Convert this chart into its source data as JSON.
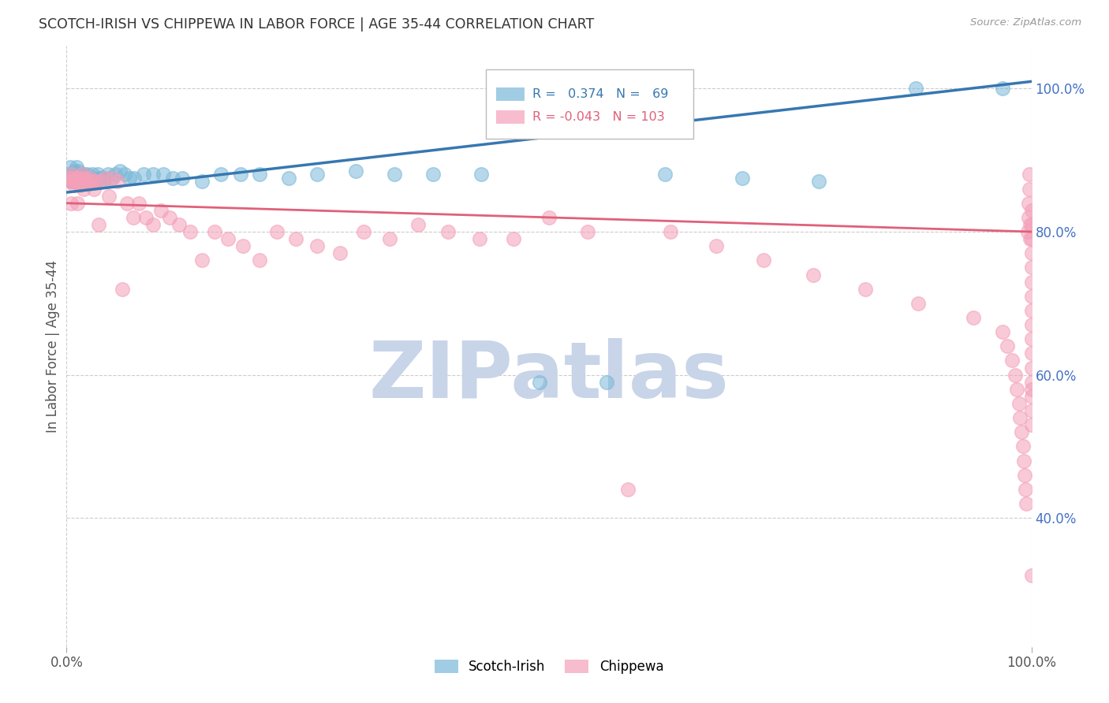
{
  "title": "SCOTCH-IRISH VS CHIPPEWA IN LABOR FORCE | AGE 35-44 CORRELATION CHART",
  "source": "Source: ZipAtlas.com",
  "ylabel": "In Labor Force | Age 35-44",
  "xlim": [
    0.0,
    1.0
  ],
  "ylim": [
    0.22,
    1.06
  ],
  "yticks": [
    0.4,
    0.6,
    0.8,
    1.0
  ],
  "ytick_labels": [
    "40.0%",
    "60.0%",
    "80.0%",
    "100.0%"
  ],
  "scotch_irish_R": 0.374,
  "scotch_irish_N": 69,
  "chippewa_R": -0.043,
  "chippewa_N": 103,
  "scotch_irish_color": "#7ab8d9",
  "chippewa_color": "#f4a0b8",
  "scotch_irish_line_color": "#3777b0",
  "chippewa_line_color": "#e0607a",
  "watermark_color": "#c8d4e8",
  "scotch_irish_x": [
    0.003,
    0.004,
    0.005,
    0.005,
    0.006,
    0.006,
    0.007,
    0.007,
    0.008,
    0.008,
    0.009,
    0.009,
    0.01,
    0.01,
    0.011,
    0.011,
    0.012,
    0.012,
    0.013,
    0.014,
    0.015,
    0.015,
    0.016,
    0.017,
    0.018,
    0.019,
    0.02,
    0.021,
    0.022,
    0.023,
    0.025,
    0.026,
    0.027,
    0.028,
    0.03,
    0.032,
    0.034,
    0.036,
    0.038,
    0.04,
    0.043,
    0.046,
    0.05,
    0.055,
    0.06,
    0.065,
    0.07,
    0.08,
    0.09,
    0.1,
    0.11,
    0.12,
    0.14,
    0.16,
    0.18,
    0.2,
    0.23,
    0.26,
    0.3,
    0.34,
    0.38,
    0.43,
    0.49,
    0.56,
    0.62,
    0.7,
    0.78,
    0.88,
    0.97
  ],
  "scotch_irish_y": [
    0.88,
    0.89,
    0.87,
    0.88,
    0.88,
    0.875,
    0.875,
    0.87,
    0.885,
    0.875,
    0.87,
    0.88,
    0.89,
    0.87,
    0.875,
    0.88,
    0.885,
    0.87,
    0.875,
    0.88,
    0.88,
    0.875,
    0.87,
    0.875,
    0.88,
    0.87,
    0.875,
    0.88,
    0.87,
    0.875,
    0.875,
    0.87,
    0.88,
    0.875,
    0.87,
    0.88,
    0.875,
    0.875,
    0.87,
    0.875,
    0.88,
    0.875,
    0.88,
    0.885,
    0.88,
    0.875,
    0.875,
    0.88,
    0.88,
    0.88,
    0.875,
    0.875,
    0.87,
    0.88,
    0.88,
    0.88,
    0.875,
    0.88,
    0.885,
    0.88,
    0.88,
    0.88,
    0.59,
    0.59,
    0.88,
    0.875,
    0.87,
    1.0,
    1.0
  ],
  "chippewa_x": [
    0.003,
    0.004,
    0.005,
    0.005,
    0.006,
    0.007,
    0.008,
    0.009,
    0.01,
    0.011,
    0.012,
    0.013,
    0.014,
    0.015,
    0.016,
    0.017,
    0.018,
    0.019,
    0.02,
    0.022,
    0.024,
    0.026,
    0.028,
    0.03,
    0.033,
    0.036,
    0.04,
    0.044,
    0.048,
    0.053,
    0.058,
    0.063,
    0.069,
    0.075,
    0.082,
    0.09,
    0.098,
    0.107,
    0.117,
    0.128,
    0.14,
    0.153,
    0.167,
    0.183,
    0.2,
    0.218,
    0.238,
    0.26,
    0.283,
    0.308,
    0.335,
    0.364,
    0.395,
    0.428,
    0.463,
    0.5,
    0.54,
    0.582,
    0.626,
    0.673,
    0.722,
    0.774,
    0.828,
    0.883,
    0.94,
    0.97,
    0.975,
    0.98,
    0.983,
    0.985,
    0.987,
    0.988,
    0.99,
    0.991,
    0.992,
    0.993,
    0.994,
    0.995,
    0.996,
    0.997,
    0.997,
    0.998,
    0.998,
    0.999,
    0.999,
    1.0,
    1.0,
    1.0,
    1.0,
    1.0,
    1.0,
    1.0,
    1.0,
    1.0,
    1.0,
    1.0,
    1.0,
    1.0,
    1.0,
    1.0,
    1.0,
    1.0,
    1.0
  ],
  "chippewa_y": [
    0.87,
    0.875,
    0.88,
    0.84,
    0.87,
    0.875,
    0.865,
    0.87,
    0.875,
    0.84,
    0.875,
    0.87,
    0.865,
    0.87,
    0.88,
    0.875,
    0.86,
    0.875,
    0.87,
    0.87,
    0.875,
    0.87,
    0.86,
    0.87,
    0.81,
    0.87,
    0.875,
    0.85,
    0.875,
    0.87,
    0.72,
    0.84,
    0.82,
    0.84,
    0.82,
    0.81,
    0.83,
    0.82,
    0.81,
    0.8,
    0.76,
    0.8,
    0.79,
    0.78,
    0.76,
    0.8,
    0.79,
    0.78,
    0.77,
    0.8,
    0.79,
    0.81,
    0.8,
    0.79,
    0.79,
    0.82,
    0.8,
    0.44,
    0.8,
    0.78,
    0.76,
    0.74,
    0.72,
    0.7,
    0.68,
    0.66,
    0.64,
    0.62,
    0.6,
    0.58,
    0.56,
    0.54,
    0.52,
    0.5,
    0.48,
    0.46,
    0.44,
    0.42,
    0.8,
    0.82,
    0.84,
    0.86,
    0.88,
    0.81,
    0.79,
    0.58,
    0.83,
    0.81,
    0.79,
    0.77,
    0.75,
    0.73,
    0.71,
    0.69,
    0.67,
    0.65,
    0.63,
    0.61,
    0.59,
    0.57,
    0.55,
    0.53,
    0.32
  ]
}
